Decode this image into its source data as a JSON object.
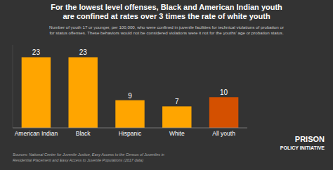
{
  "chart_data": {
    "type": "bar",
    "title": "For the lowest level offenses, Black and American Indian youth\nare confined at rates over 3 times the rate of white youth",
    "subtitle": "Number of youth 17 or younger, per 100,000, who were confined in juvenile facilities for technical violations of probation or\n for status offenses. These behaviors would not be considered violations were it not for the youths' age or probation status.",
    "source": "Sources: National Center for Juvenile Justice, Easy Access to the Census of Juveniles in\nResidential Placement and Easy Access to Juvenile Populations (2017 data)",
    "annotations": [
      "PRISON",
      "POLICY INITIATIVE"
    ],
    "categories": [
      "American Indian",
      "Black",
      "Hispanic",
      "White",
      "All youth"
    ],
    "values": [
      23,
      23,
      9,
      7,
      10
    ],
    "colors": [
      "#FFA500",
      "#FFA500",
      "#FFA500",
      "#FFA500",
      "#D45000"
    ],
    "ylim": [
      0,
      27
    ],
    "data_labels": true,
    "tick_labels": "x",
    "grid": false
  }
}
